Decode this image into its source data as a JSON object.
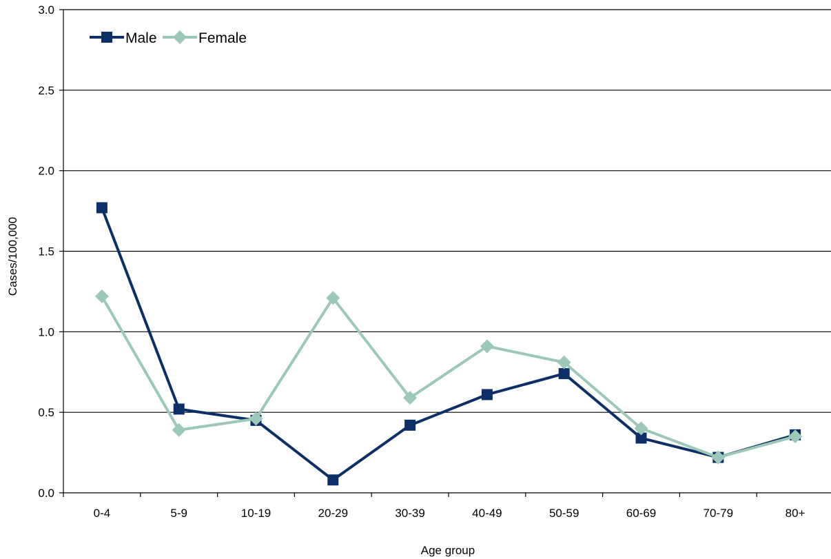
{
  "chart_data": {
    "type": "line",
    "title": "",
    "xlabel": "Age group",
    "ylabel": "Cases/100,000",
    "categories": [
      "0-4",
      "5-9",
      "10-19",
      "20-29",
      "30-39",
      "40-49",
      "50-59",
      "60-69",
      "70-79",
      "80+"
    ],
    "ylim": [
      0,
      3.0
    ],
    "yticks": [
      "0.0",
      "0.5",
      "1.0",
      "1.5",
      "2.0",
      "2.5",
      "3.0"
    ],
    "grid": true,
    "legend_position": "top-left",
    "series": [
      {
        "name": "Male",
        "values": [
          1.77,
          0.52,
          0.45,
          0.08,
          0.42,
          0.61,
          0.74,
          0.34,
          0.22,
          0.36
        ],
        "color": "#0b2f66",
        "marker": "square"
      },
      {
        "name": "Female",
        "values": [
          1.22,
          0.39,
          0.46,
          1.21,
          0.59,
          0.91,
          0.81,
          0.4,
          0.22,
          0.35
        ],
        "color": "#9bc8b9",
        "marker": "diamond"
      }
    ]
  }
}
